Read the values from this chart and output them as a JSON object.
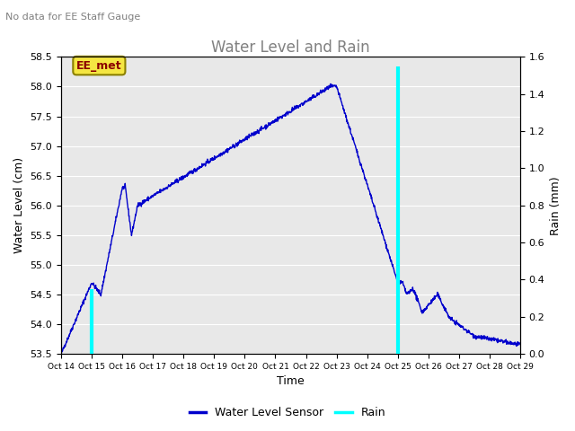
{
  "title": "Water Level and Rain",
  "subtitle": "No data for EE Staff Gauge",
  "xlabel": "Time",
  "ylabel_left": "Water Level (cm)",
  "ylabel_right": "Rain (mm)",
  "annotation": "EE_met",
  "ylim_left": [
    53.5,
    58.5
  ],
  "ylim_right": [
    0.0,
    1.6
  ],
  "yticks_left": [
    53.5,
    54.0,
    54.5,
    55.0,
    55.5,
    56.0,
    56.5,
    57.0,
    57.5,
    58.0,
    58.5
  ],
  "yticks_right": [
    0.0,
    0.2,
    0.4,
    0.6,
    0.8,
    1.0,
    1.2,
    1.4,
    1.6
  ],
  "xtick_labels": [
    "Oct 14",
    "Oct 15",
    "Oct 16",
    "Oct 17",
    "Oct 18",
    "Oct 19",
    "Oct 20",
    "Oct 21",
    "Oct 22",
    "Oct 23",
    "Oct 24",
    "Oct 25",
    "Oct 26",
    "Oct 27",
    "Oct 28",
    "Oct 29"
  ],
  "water_color": "#0000cc",
  "rain_color": "#00ffff",
  "plot_bg_color": "#e8e8e8",
  "fig_bg_color": "#ffffff",
  "legend_water": "Water Level Sensor",
  "legend_rain": "Rain",
  "rain_times": [
    1.0,
    11.0
  ],
  "rain_values": [
    0.35,
    1.55
  ],
  "title_color": "gray",
  "subtitle_color": "gray"
}
